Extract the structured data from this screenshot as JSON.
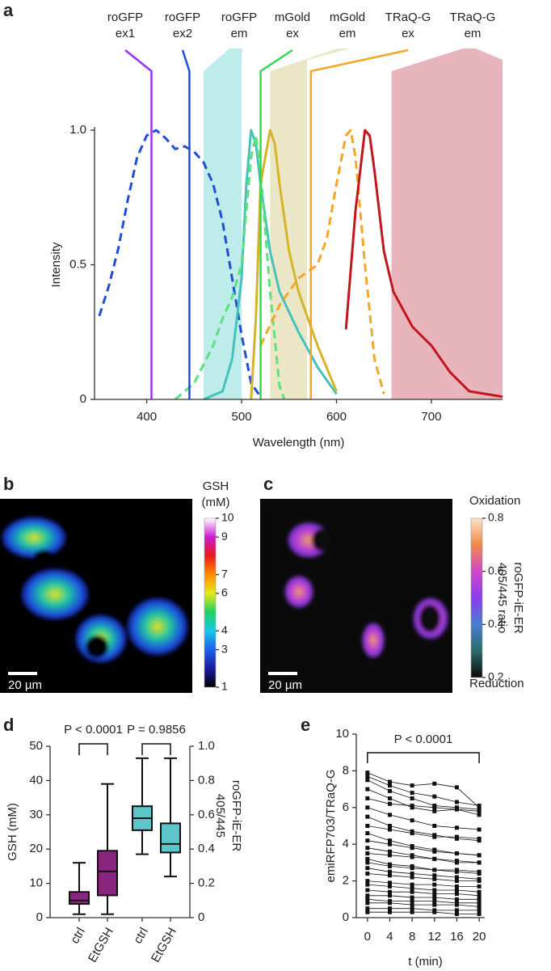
{
  "chart_data": [
    {
      "type": "line",
      "panel": "a",
      "xlabel": "Wavelength (nm)",
      "ylabel": "Intensity",
      "xlim": [
        345,
        775
      ],
      "xticks": [
        400,
        500,
        600,
        700
      ],
      "ylim": [
        0,
        1
      ],
      "yticks": [
        0,
        0.5,
        {
          "value": 1,
          "label": "1.0"
        }
      ],
      "lasers": [
        {
          "label": [
            "roGFP",
            "ex1"
          ],
          "x": 405,
          "color": "#9b30ff"
        },
        {
          "label": [
            "roGFP",
            "ex2"
          ],
          "x": 445,
          "color": "#1f4fd8"
        },
        {
          "label": [
            "mGold",
            "ex"
          ],
          "x": 520,
          "color": "#2ddc4a"
        },
        {
          "label": [
            "TRaQ-G",
            "ex"
          ],
          "x": 573,
          "color": "#f5a623"
        }
      ],
      "bands": [
        {
          "label": [
            "roGFP",
            "em"
          ],
          "range": [
            460,
            500
          ],
          "color": "#bdeceb"
        },
        {
          "label": [
            "mGold",
            "em"
          ],
          "range": [
            530,
            569
          ],
          "color": "#ebe7c6"
        },
        {
          "label": [
            "TRaQ-G",
            "em"
          ],
          "range": [
            658,
            775
          ],
          "color": "#e9b5bd"
        }
      ],
      "series": [
        {
          "color": "#1f4fd8",
          "dashed": true,
          "x": [
            350,
            360,
            370,
            380,
            390,
            400,
            410,
            420,
            430,
            440,
            450,
            460,
            470,
            480,
            490,
            500,
            510,
            520
          ],
          "values": [
            0.31,
            0.42,
            0.56,
            0.74,
            0.9,
            0.98,
            1.0,
            0.97,
            0.93,
            0.94,
            0.92,
            0.88,
            0.8,
            0.66,
            0.45,
            0.24,
            0.06,
            0.01
          ]
        },
        {
          "color": "#45c2ba",
          "dashed": false,
          "x": [
            460,
            480,
            490,
            500,
            505,
            510,
            515,
            520,
            530,
            540,
            560,
            580,
            600
          ],
          "values": [
            0,
            0.03,
            0.15,
            0.45,
            0.8,
            1.0,
            0.95,
            0.8,
            0.55,
            0.4,
            0.25,
            0.12,
            0.02
          ]
        },
        {
          "color": "#5ee07e",
          "dashed": true,
          "x": [
            430,
            450,
            470,
            480,
            490,
            500,
            505,
            510,
            515,
            520,
            530,
            540,
            545
          ],
          "values": [
            0,
            0.06,
            0.2,
            0.3,
            0.38,
            0.5,
            0.7,
            0.9,
            0.98,
            0.85,
            0.4,
            0.05,
            0
          ]
        },
        {
          "color": "#d4b52a",
          "dashed": false,
          "x": [
            510,
            515,
            520,
            530,
            535,
            540,
            550,
            560,
            570,
            580,
            600
          ],
          "values": [
            0,
            0.3,
            0.8,
            1.0,
            0.95,
            0.8,
            0.55,
            0.4,
            0.3,
            0.2,
            0.03
          ]
        },
        {
          "color": "#f5a623",
          "dashed": true,
          "x": [
            520,
            540,
            560,
            580,
            590,
            600,
            610,
            615,
            620,
            630,
            640,
            650
          ],
          "values": [
            0.2,
            0.35,
            0.45,
            0.5,
            0.6,
            0.8,
            0.98,
            1.0,
            0.9,
            0.5,
            0.15,
            0.02
          ]
        },
        {
          "color": "#c0161c",
          "dashed": false,
          "x": [
            610,
            620,
            630,
            635,
            640,
            650,
            660,
            680,
            700,
            720,
            740,
            775
          ],
          "values": [
            0.26,
            0.7,
            1.0,
            0.98,
            0.85,
            0.55,
            0.4,
            0.27,
            0.2,
            0.1,
            0.03,
            0.01
          ]
        }
      ]
    },
    {
      "type": "image",
      "panel": "b",
      "scalebar": "20 µm",
      "colorbar": {
        "title": [
          "GSH",
          "(mM)"
        ],
        "lim": [
          1,
          10
        ],
        "ticks": [
          10,
          9,
          7,
          6,
          4,
          3,
          1
        ],
        "colors": [
          "#000000",
          "#1a1aa0",
          "#1f5ff0",
          "#16c8e8",
          "#20d060",
          "#e8e81a",
          "#ff8c00",
          "#e81a1a",
          "#d01ad0",
          "#ffffff"
        ]
      }
    },
    {
      "type": "image",
      "panel": "c",
      "scalebar": "20 µm",
      "colorbar": {
        "title": [
          "roGFP-iE-ER",
          "405/445 ratio"
        ],
        "top_label": "Oxidation",
        "bottom_label": "Reduction",
        "lim": [
          0.2,
          0.8
        ],
        "ticks": [
          0.8,
          0.6,
          0.4,
          0.2
        ],
        "colors": [
          "#0a0a0a",
          "#2a6b68",
          "#4a7fd0",
          "#8a3cf0",
          "#d048c8",
          "#f08848",
          "#fbe6c8"
        ]
      }
    },
    {
      "type": "box",
      "panel": "d",
      "ylabel": "GSH (mM)",
      "y2label": [
        "roGFP-iE-ER",
        "405/445"
      ],
      "categories": [
        "ctrl",
        "EtGSH",
        "ctrl",
        "EtGSH"
      ],
      "ylim": [
        0,
        50
      ],
      "yticks": [
        0,
        10,
        20,
        30,
        40,
        50
      ],
      "y2lim": [
        0,
        1
      ],
      "y2ticks": [
        0,
        0.2,
        0.4,
        0.6,
        0.8,
        {
          "value": 1,
          "label": "1.0"
        }
      ],
      "series": [
        {
          "color": "#8b2582",
          "axis": "y",
          "boxes": [
            {
              "whislo": 1,
              "q1": 4,
              "med": 5,
              "q3": 7.5,
              "whishi": 16
            },
            {
              "whislo": 1,
              "q1": 6.5,
              "med": 13.5,
              "q3": 19.5,
              "whishi": 39
            },
            null,
            null
          ]
        },
        {
          "color": "#5cc7cb",
          "axis": "y2",
          "boxes": [
            null,
            null,
            {
              "whislo": 0.37,
              "q1": 0.51,
              "med": 0.58,
              "q3": 0.65,
              "whishi": 0.93
            },
            {
              "whislo": 0.24,
              "q1": 0.38,
              "med": 0.43,
              "q3": 0.55,
              "whishi": 0.93
            }
          ]
        }
      ],
      "annotations": [
        {
          "text": "P < 0.0001",
          "between": [
            0,
            1
          ]
        },
        {
          "text": "P = 0.9856",
          "between": [
            2,
            3
          ]
        }
      ]
    },
    {
      "type": "line",
      "panel": "e",
      "xlabel": "t (min)",
      "ylabel": "emiRFP703/TRaQ-G",
      "x": [
        0,
        4,
        8,
        12,
        16,
        20
      ],
      "xlim": [
        -2,
        21
      ],
      "xticks": [
        0,
        4,
        8,
        12,
        16,
        20
      ],
      "ylim": [
        0,
        10
      ],
      "yticks": [
        0,
        2,
        4,
        6,
        8,
        10
      ],
      "color": "#111111",
      "series": [
        {
          "values": [
            7.9,
            7.4,
            7.2,
            7.3,
            7.1,
            6.0
          ]
        },
        {
          "values": [
            7.7,
            7.2,
            6.8,
            6.6,
            6.3,
            6.1
          ]
        },
        {
          "values": [
            7.5,
            6.9,
            6.5,
            6.1,
            6.0,
            5.9
          ]
        },
        {
          "values": [
            7.0,
            6.5,
            6.0,
            5.8,
            5.9,
            5.6
          ]
        },
        {
          "values": [
            6.5,
            6.2,
            6.1,
            6.0,
            5.9,
            5.8
          ]
        },
        {
          "values": [
            6.0,
            5.6,
            5.3,
            5.0,
            4.9,
            4.8
          ]
        },
        {
          "values": [
            5.5,
            5.0,
            4.7,
            4.5,
            4.3,
            4.2
          ]
        },
        {
          "values": [
            5.0,
            4.8,
            4.6,
            4.4,
            4.4,
            4.3
          ]
        },
        {
          "values": [
            4.6,
            4.2,
            3.9,
            3.7,
            3.5,
            3.4
          ]
        },
        {
          "values": [
            4.2,
            4.0,
            3.8,
            3.6,
            3.5,
            3.4
          ]
        },
        {
          "values": [
            3.8,
            3.6,
            3.4,
            3.2,
            3.0,
            3.0
          ]
        },
        {
          "values": [
            3.5,
            3.4,
            3.3,
            3.2,
            3.1,
            3.0
          ]
        },
        {
          "values": [
            3.2,
            2.9,
            2.8,
            2.6,
            2.5,
            2.4
          ]
        },
        {
          "values": [
            3.0,
            2.8,
            2.7,
            2.6,
            2.6,
            2.5
          ]
        },
        {
          "values": [
            2.7,
            2.5,
            2.4,
            2.3,
            2.2,
            2.1
          ]
        },
        {
          "values": [
            2.4,
            2.3,
            2.2,
            2.1,
            2.0,
            2.0
          ]
        },
        {
          "values": [
            2.0,
            1.9,
            1.8,
            1.8,
            1.7,
            1.7
          ]
        },
        {
          "values": [
            1.8,
            1.7,
            1.6,
            1.5,
            1.5,
            1.4
          ]
        },
        {
          "values": [
            1.5,
            1.4,
            1.4,
            1.3,
            1.3,
            1.2
          ]
        },
        {
          "values": [
            1.2,
            1.2,
            1.1,
            1.1,
            1.0,
            1.0
          ]
        },
        {
          "values": [
            1.0,
            0.9,
            0.9,
            0.9,
            0.8,
            0.8
          ]
        },
        {
          "values": [
            0.8,
            0.8,
            0.7,
            0.7,
            0.7,
            0.6
          ]
        },
        {
          "values": [
            0.5,
            0.5,
            0.5,
            0.4,
            0.4,
            0.4
          ]
        },
        {
          "values": [
            0.3,
            0.3,
            0.3,
            0.3,
            0.2,
            0.2
          ]
        }
      ],
      "annotations": [
        {
          "text": "P < 0.0001",
          "between": [
            0,
            20
          ]
        }
      ]
    }
  ]
}
